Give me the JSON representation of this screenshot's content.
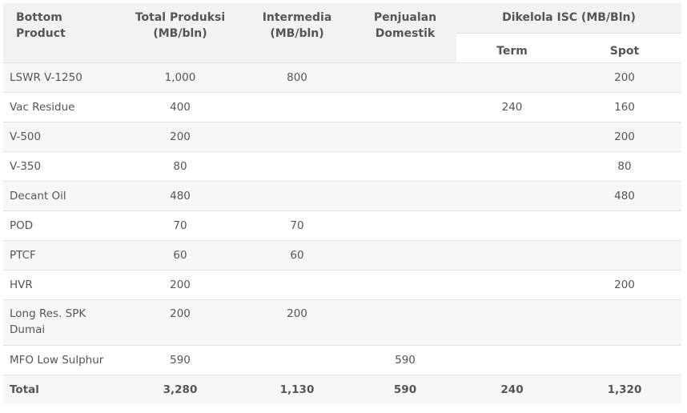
{
  "headers": {
    "bottom_product": "Bottom Product",
    "total_produksi": "Total Produksi (MB/bln)",
    "intermedia": "Intermedia (MB/bln)",
    "penjualan_domestik": "Penjualan Domestik",
    "dikelola_isc": "Dikelola ISC (MB/Bln)",
    "term": "Term",
    "spot": "Spot"
  },
  "rows": [
    {
      "product": "LSWR V-1250",
      "total": "1,000",
      "intermedia": "800",
      "domestik": "",
      "term": "",
      "spot": "200"
    },
    {
      "product": "Vac Residue",
      "total": "400",
      "intermedia": "",
      "domestik": "",
      "term": "240",
      "spot": "160"
    },
    {
      "product": "V-500",
      "total": "200",
      "intermedia": "",
      "domestik": "",
      "term": "",
      "spot": "200"
    },
    {
      "product": "V-350",
      "total": "80",
      "intermedia": "",
      "domestik": "",
      "term": "",
      "spot": "80"
    },
    {
      "product": "Decant Oil",
      "total": "480",
      "intermedia": "",
      "domestik": "",
      "term": "",
      "spot": "480"
    },
    {
      "product": "POD",
      "total": "70",
      "intermedia": "70",
      "domestik": "",
      "term": "",
      "spot": ""
    },
    {
      "product": "PTCF",
      "total": "60",
      "intermedia": "60",
      "domestik": "",
      "term": "",
      "spot": ""
    },
    {
      "product": "HVR",
      "total": "200",
      "intermedia": "",
      "domestik": "",
      "term": "",
      "spot": "200"
    },
    {
      "product": "Long Res. SPK Dumai",
      "total": "200",
      "intermedia": "200",
      "domestik": "",
      "term": "",
      "spot": ""
    },
    {
      "product": "MFO Low Sulphur",
      "total": "590",
      "intermedia": "",
      "domestik": "590",
      "term": "",
      "spot": ""
    }
  ],
  "total": {
    "product": "Total",
    "total": "3,280",
    "intermedia": "1,130",
    "domestik": "590",
    "term": "240",
    "spot": "1,320"
  }
}
